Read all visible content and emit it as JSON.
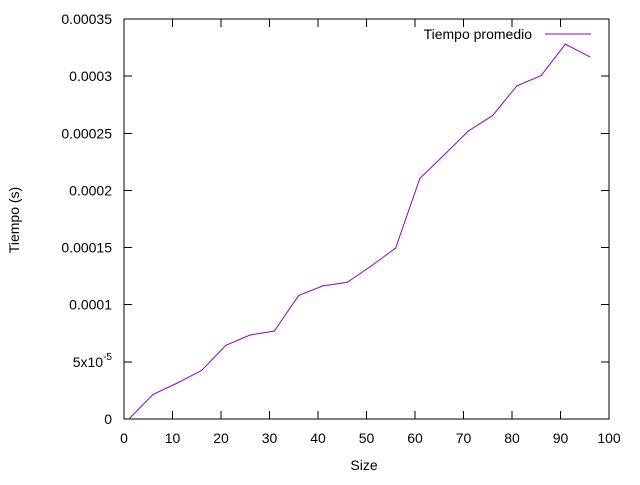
{
  "chart_data": {
    "type": "line",
    "xlabel": "Size",
    "ylabel": "Tiempo (s)",
    "xlim": [
      0,
      100
    ],
    "ylim": [
      0,
      0.00035
    ],
    "x_ticks": [
      {
        "value": 0,
        "label": "0"
      },
      {
        "value": 10,
        "label": "10"
      },
      {
        "value": 20,
        "label": "20"
      },
      {
        "value": 30,
        "label": "30"
      },
      {
        "value": 40,
        "label": "40"
      },
      {
        "value": 50,
        "label": "50"
      },
      {
        "value": 60,
        "label": "60"
      },
      {
        "value": 70,
        "label": "70"
      },
      {
        "value": 80,
        "label": "80"
      },
      {
        "value": 90,
        "label": "90"
      },
      {
        "value": 100,
        "label": "100"
      }
    ],
    "y_ticks": [
      {
        "value": 0,
        "label": "0"
      },
      {
        "value": 5e-05,
        "label": "5x10",
        "sup": "-5"
      },
      {
        "value": 0.0001,
        "label": "0.0001"
      },
      {
        "value": 0.00015,
        "label": "0.00015"
      },
      {
        "value": 0.0002,
        "label": "0.0002"
      },
      {
        "value": 0.00025,
        "label": "0.00025"
      },
      {
        "value": 0.0003,
        "label": "0.0003"
      },
      {
        "value": 0.00035,
        "label": "0.00035"
      }
    ],
    "grid": false,
    "legend": {
      "position": "top-right"
    },
    "series": [
      {
        "name": "Tiempo promedio",
        "color": "#9400d3",
        "x": [
          1,
          6,
          11,
          16,
          21,
          26,
          31,
          36,
          41,
          46,
          51,
          56,
          61,
          66,
          71,
          76,
          81,
          86,
          91,
          96
        ],
        "y": [
          0.0,
          2.15e-05,
          3.15e-05,
          4.25e-05,
          6.45e-05,
          7.35e-05,
          7.7e-05,
          0.000108,
          0.0001165,
          0.0001195,
          0.000134,
          0.0001495,
          0.0002105,
          0.000231,
          0.000252,
          0.0002655,
          0.0002915,
          0.0003005,
          0.000328,
          0.000317
        ]
      }
    ]
  }
}
